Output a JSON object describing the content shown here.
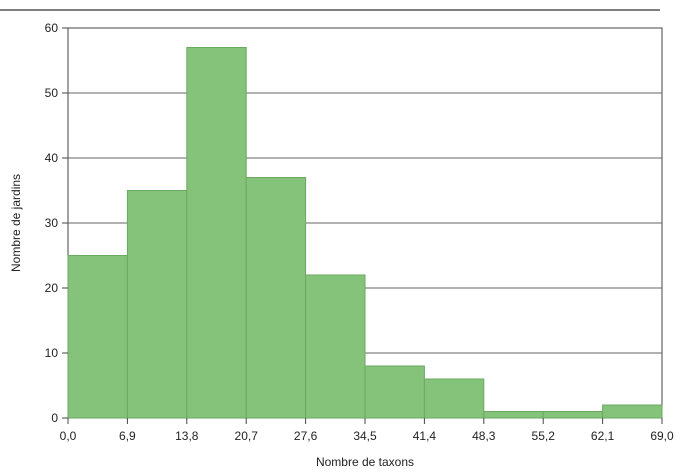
{
  "chart_data": {
    "type": "bar",
    "subtype": "histogram",
    "title": "",
    "xlabel": "Nombre de taxons",
    "ylabel": "Nombre de jardins",
    "bin_edges": [
      0.0,
      6.9,
      13.8,
      20.7,
      27.6,
      34.5,
      41.4,
      48.3,
      55.2,
      62.1,
      69.0
    ],
    "x_tick_labels": [
      "0,0",
      "6,9",
      "13,8",
      "20,7",
      "27,6",
      "34,5",
      "41,4",
      "48,3",
      "55,2",
      "62,1",
      "69,0"
    ],
    "values": [
      25,
      35,
      57,
      37,
      22,
      8,
      6,
      1,
      1,
      2
    ],
    "ylim": [
      0,
      60
    ],
    "y_ticks": [
      0,
      10,
      20,
      30,
      40,
      50,
      60
    ],
    "grid": "horizontal",
    "legend": "none",
    "colors": {
      "bar_fill": "#85c27a",
      "bar_edge": "#6aaa62",
      "grid": "#666666",
      "axis": "#444444",
      "top_rule": "#555555"
    }
  }
}
